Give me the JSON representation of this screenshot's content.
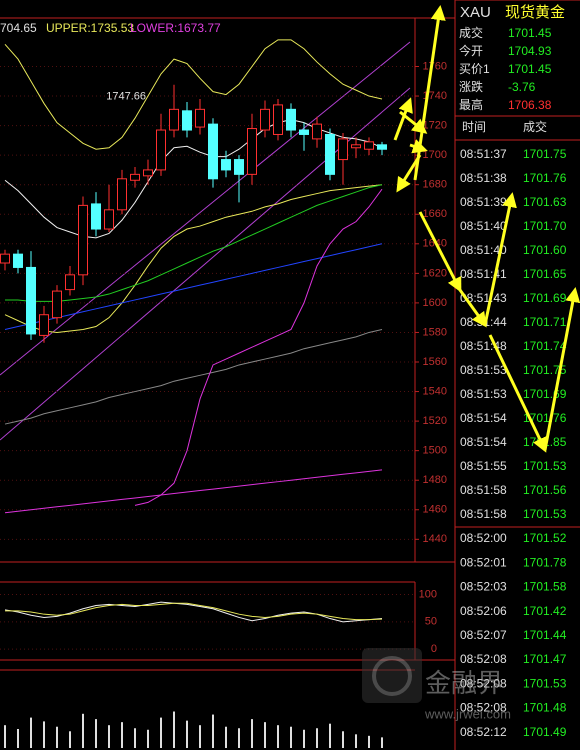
{
  "header": {
    "middle": "704.65",
    "upper": "UPPER:1735.53",
    "lower": "LOWER:1673.77"
  },
  "chart_data": {
    "type": "candlestick",
    "annotation": "1747.66",
    "ylim": [
      1426,
      1805
    ],
    "yticks": [
      1440,
      1460,
      1480,
      1500,
      1520,
      1540,
      1560,
      1580,
      1600,
      1620,
      1640,
      1660,
      1680,
      1700,
      1720,
      1740,
      1760
    ],
    "grid": true,
    "up_color": "#ff3030",
    "down_color": "#54ffff",
    "open": [
      1627,
      1633,
      1624,
      1578,
      1590,
      1609,
      1619,
      1667,
      1650,
      1663,
      1683,
      1686,
      1690,
      1717,
      1730,
      1719,
      1721,
      1697,
      1697,
      1687,
      1717,
      1714,
      1731,
      1717,
      1711,
      1714,
      1697,
      1705,
      1704,
      1707
    ],
    "high": [
      1636,
      1636,
      1635,
      1598,
      1612,
      1625,
      1672,
      1675,
      1680,
      1690,
      1692,
      1697,
      1728,
      1747.66,
      1736,
      1738,
      1725,
      1703,
      1700,
      1728,
      1737,
      1738,
      1735,
      1722,
      1726,
      1718,
      1715,
      1712,
      1712,
      1709
    ],
    "low": [
      1622,
      1620,
      1575,
      1573,
      1586,
      1605,
      1612,
      1645,
      1648,
      1660,
      1678,
      1680,
      1686,
      1712,
      1712,
      1714,
      1678,
      1685,
      1668,
      1680,
      1712,
      1710,
      1712,
      1703,
      1705,
      1683,
      1680,
      1698,
      1700,
      1700
    ],
    "close": [
      1633,
      1624,
      1579,
      1592,
      1608,
      1619,
      1666,
      1650,
      1663,
      1684,
      1687,
      1690,
      1717,
      1731,
      1717,
      1731,
      1684,
      1690,
      1687,
      1718,
      1731,
      1734,
      1717,
      1714,
      1721,
      1687,
      1711,
      1707,
      1709,
      1704
    ],
    "lines": [
      {
        "color": "#e8e85a",
        "values": [
          1775,
          1765,
          1750,
          1735,
          1722,
          1715,
          1708,
          1704,
          1705,
          1712,
          1725,
          1740,
          1755,
          1765,
          1762,
          1752,
          1743,
          1741,
          1748,
          1760,
          1772,
          1778,
          1778,
          1772,
          1763,
          1755,
          1748,
          1744,
          1740,
          1738
        ]
      },
      {
        "color": "#e8e85a",
        "values": [
          1592,
          1588,
          1584,
          1581,
          1580,
          1581,
          1582,
          1584,
          1590,
          1600,
          1612,
          1625,
          1637,
          1645,
          1650,
          1652,
          1655,
          1658,
          1660,
          1662,
          1665,
          1667,
          1670,
          1672,
          1674,
          1676,
          1677,
          1678,
          1679,
          1680
        ]
      },
      {
        "color": "#f0f0f0",
        "values": [
          1683,
          1676,
          1667,
          1658,
          1651,
          1648,
          1645,
          1644,
          1647,
          1656,
          1668,
          1682,
          1696,
          1705,
          1706,
          1702,
          1699,
          1699,
          1704,
          1711,
          1718,
          1722,
          1724,
          1722,
          1718,
          1715,
          1712,
          1711,
          1709,
          1705
        ]
      },
      {
        "color": "#22cc22",
        "values": [
          1602,
          1602,
          1601,
          1601,
          1601,
          1602,
          1603,
          1604,
          1606,
          1609,
          1612,
          1615,
          1619,
          1623,
          1627,
          1631,
          1635,
          1638,
          1642,
          1646,
          1650,
          1654,
          1658,
          1662,
          1666,
          1669,
          1672,
          1675,
          1678,
          1680
        ]
      },
      {
        "color": "#2244ff",
        "values": [
          1582,
          1584,
          1586,
          1588,
          1590,
          1592,
          1594,
          1596,
          1598,
          1600,
          1602,
          1604,
          1606,
          1608,
          1610,
          1612,
          1614,
          1616,
          1618,
          1620,
          1622,
          1624,
          1626,
          1628,
          1630,
          1632,
          1634,
          1636,
          1638,
          1640
        ]
      },
      {
        "color": "#888888",
        "values": [
          1518,
          1520,
          1522,
          1525,
          1527,
          1529,
          1531,
          1533,
          1536,
          1538,
          1540,
          1542,
          1544,
          1547,
          1549,
          1551,
          1553,
          1555,
          1558,
          1560,
          1562,
          1564,
          1566,
          1569,
          1571,
          1573,
          1575,
          1577,
          1580,
          1582
        ]
      },
      {
        "color": "#dd33dd",
        "values": [
          null,
          null,
          null,
          null,
          null,
          null,
          null,
          null,
          null,
          null,
          1463,
          1465,
          1470,
          1478,
          1500,
          1535,
          1558,
          1562,
          1566,
          1570,
          1574,
          1578,
          1582,
          1600,
          1625,
          1640,
          1650,
          1655,
          1665,
          1677
        ]
      },
      {
        "color": "#dd33dd",
        "values": [
          1458,
          1459,
          1460,
          1461,
          1462,
          1463,
          1464,
          1465,
          1466,
          1467,
          1468,
          1469,
          1470,
          1471,
          1472,
          1473,
          1474,
          1475,
          1476,
          1477,
          1478,
          1479,
          1480,
          1481,
          1482,
          1483,
          1484,
          1485,
          1486,
          1487
        ]
      }
    ]
  },
  "oscillator": {
    "type": "line",
    "ylim": [
      -20,
      123
    ],
    "yticks": [
      0,
      50,
      100
    ],
    "lines": [
      {
        "color": "#f0f0f0",
        "values": [
          72,
          68,
          62,
          58,
          60,
          66,
          74,
          80,
          82,
          80,
          78,
          82,
          86,
          84,
          82,
          78,
          74,
          66,
          58,
          52,
          56,
          62,
          66,
          68,
          64,
          56,
          50,
          52,
          54,
          56
        ]
      },
      {
        "color": "#e8e85a",
        "values": [
          70,
          70,
          68,
          64,
          62,
          64,
          70,
          76,
          80,
          82,
          80,
          80,
          82,
          84,
          84,
          80,
          76,
          70,
          64,
          60,
          58,
          60,
          64,
          66,
          64,
          60,
          56,
          54,
          54,
          55
        ]
      }
    ]
  },
  "volume": {
    "type": "bar",
    "ylim": [
      0,
      100
    ],
    "color": "#e0e0e0",
    "values": [
      30,
      25,
      40,
      35,
      28,
      22,
      45,
      38,
      30,
      34,
      26,
      24,
      40,
      48,
      36,
      30,
      44,
      28,
      26,
      38,
      34,
      30,
      28,
      24,
      26,
      32,
      22,
      18,
      16,
      14
    ]
  },
  "quote_panel": {
    "symbol": "XAU",
    "name": "现货黄金",
    "rows": [
      {
        "label": "成交",
        "value": "1701.45",
        "color": "#22ee22"
      },
      {
        "label": "今开",
        "value": "1704.93",
        "color": "#22ee22"
      },
      {
        "label": "买价1",
        "value": "1701.45",
        "color": "#22ee22"
      },
      {
        "label": "涨跌",
        "value": "-3.76",
        "color": "#22ee22"
      },
      {
        "label": "最高",
        "value": "1706.38",
        "color": "#ff3030"
      }
    ],
    "ticks_header": [
      "时间",
      "成交"
    ],
    "ticks": [
      [
        "08:51:37",
        "1701.75"
      ],
      [
        "08:51:38",
        "1701.76"
      ],
      [
        "08:51:39",
        "1701.63"
      ],
      [
        "08:51:40",
        "1701.70"
      ],
      [
        "08:51:40",
        "1701.60"
      ],
      [
        "08:51:41",
        "1701.65"
      ],
      [
        "08:51:43",
        "1701.69"
      ],
      [
        "08:51:44",
        "1701.71"
      ],
      [
        "08:51:48",
        "1701.74"
      ],
      [
        "08:51:53",
        "1701.75"
      ],
      [
        "08:51:53",
        "1701.69"
      ],
      [
        "08:51:54",
        "1701.76"
      ],
      [
        "08:51:54",
        "1701.85"
      ],
      [
        "08:51:55",
        "1701.53"
      ],
      [
        "08:51:58",
        "1701.56"
      ],
      [
        "08:51:58",
        "1701.53"
      ],
      [
        "08:52:00",
        "1701.52"
      ],
      [
        "08:52:01",
        "1701.78"
      ],
      [
        "08:52:03",
        "1701.58"
      ],
      [
        "08:52:06",
        "1701.42"
      ],
      [
        "08:52:07",
        "1701.44"
      ],
      [
        "08:52:08",
        "1701.47"
      ],
      [
        "08:52:08",
        "1701.53"
      ],
      [
        "08:52:08",
        "1701.48"
      ],
      [
        "08:52:12",
        "1701.49"
      ]
    ],
    "tick_color": "#22ee22"
  },
  "watermark": {
    "brand": "金融界",
    "url": "www.jrwei.com"
  }
}
